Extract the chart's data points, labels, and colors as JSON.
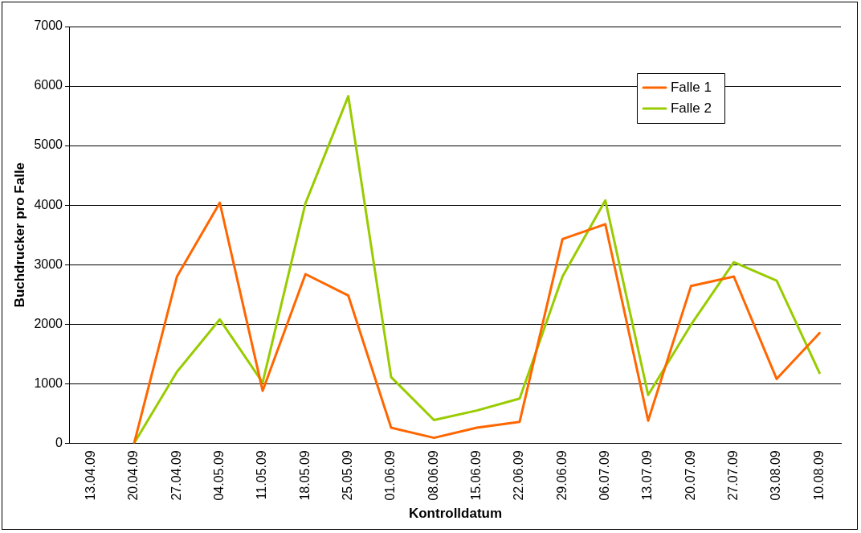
{
  "chart_data": {
    "type": "line",
    "xlabel": "Kontrolldatum",
    "ylabel": "Buchdrucker pro Falle",
    "categories": [
      "13.04.09",
      "20.04.09",
      "27.04.09",
      "04.05.09",
      "11.05.09",
      "18.05.09",
      "25.05.09",
      "01.06.09",
      "08.06.09",
      "15.06.09",
      "22.06.09",
      "29.06.09",
      "06.07.09",
      "13.07.09",
      "20.07.09",
      "27.07.09",
      "03.08.09",
      "10.08.09"
    ],
    "series": [
      {
        "name": "Falle 1",
        "color": "#ff6600",
        "values": [
          null,
          0,
          2800,
          4040,
          880,
          2840,
          2480,
          260,
          90,
          260,
          360,
          3430,
          3680,
          380,
          2640,
          2800,
          1080,
          1850
        ]
      },
      {
        "name": "Falle 2",
        "color": "#99cc00",
        "values": [
          null,
          0,
          1200,
          2080,
          1020,
          4030,
          5830,
          1110,
          390,
          550,
          750,
          2800,
          4080,
          810,
          1990,
          3040,
          2730,
          1180
        ]
      }
    ],
    "ylim": [
      0,
      7000
    ],
    "yticks": [
      0,
      1000,
      2000,
      3000,
      4000,
      5000,
      6000,
      7000
    ],
    "grid": "y",
    "legend": "top right",
    "marker": "none",
    "line_style": "solid"
  }
}
